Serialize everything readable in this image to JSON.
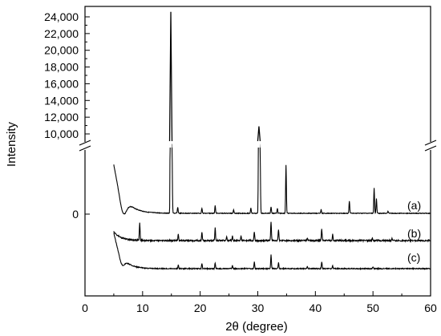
{
  "chart_data": {
    "type": "line",
    "xlabel": "2θ (degree)",
    "ylabel": "Intensity",
    "xlim": [
      0,
      60
    ],
    "x_ticks": [
      "0",
      "10",
      "20",
      "30",
      "40",
      "50",
      "60"
    ],
    "y_axis_broken": true,
    "y_ticks_upper": [
      "10,000",
      "12,000",
      "14,000",
      "16,000",
      "18,000",
      "20,000",
      "22,000",
      "24,000"
    ],
    "y_ticks_lower": [
      "0"
    ],
    "ylim_upper": [
      9000,
      25000
    ],
    "grid": false,
    "series": [
      {
        "name": "(a)",
        "peaks": [
          {
            "x": 14.9,
            "y": 24600
          },
          {
            "x": 15.1,
            "y": 2000
          },
          {
            "x": 16.1,
            "y": 180
          },
          {
            "x": 20.3,
            "y": 150
          },
          {
            "x": 22.6,
            "y": 230
          },
          {
            "x": 25.8,
            "y": 110
          },
          {
            "x": 28.8,
            "y": 160
          },
          {
            "x": 30.2,
            "y": 10900
          },
          {
            "x": 30.4,
            "y": 1800
          },
          {
            "x": 32.3,
            "y": 190
          },
          {
            "x": 33.4,
            "y": 140
          },
          {
            "x": 34.9,
            "y": 1400
          },
          {
            "x": 41.0,
            "y": 110
          },
          {
            "x": 45.9,
            "y": 360
          },
          {
            "x": 50.2,
            "y": 740
          },
          {
            "x": 50.6,
            "y": 420
          },
          {
            "x": 52.6,
            "y": 70
          }
        ]
      },
      {
        "name": "(b)",
        "peaks": [
          {
            "x": 9.5,
            "y": 520
          },
          {
            "x": 16.2,
            "y": 190
          },
          {
            "x": 20.3,
            "y": 240
          },
          {
            "x": 22.6,
            "y": 370
          },
          {
            "x": 24.6,
            "y": 120
          },
          {
            "x": 25.6,
            "y": 140
          },
          {
            "x": 27.1,
            "y": 130
          },
          {
            "x": 29.4,
            "y": 260
          },
          {
            "x": 32.3,
            "y": 560
          },
          {
            "x": 33.6,
            "y": 330
          },
          {
            "x": 38.6,
            "y": 90
          },
          {
            "x": 41.1,
            "y": 350
          },
          {
            "x": 43.0,
            "y": 180
          },
          {
            "x": 49.9,
            "y": 70
          },
          {
            "x": 53.3,
            "y": 60
          }
        ]
      },
      {
        "name": "(c)",
        "peaks": [
          {
            "x": 16.2,
            "y": 100
          },
          {
            "x": 20.3,
            "y": 160
          },
          {
            "x": 22.6,
            "y": 170
          },
          {
            "x": 25.6,
            "y": 90
          },
          {
            "x": 29.4,
            "y": 190
          },
          {
            "x": 32.3,
            "y": 400
          },
          {
            "x": 33.6,
            "y": 180
          },
          {
            "x": 38.6,
            "y": 60
          },
          {
            "x": 41.1,
            "y": 200
          },
          {
            "x": 43.0,
            "y": 80
          },
          {
            "x": 50.0,
            "y": 50
          }
        ]
      }
    ]
  }
}
